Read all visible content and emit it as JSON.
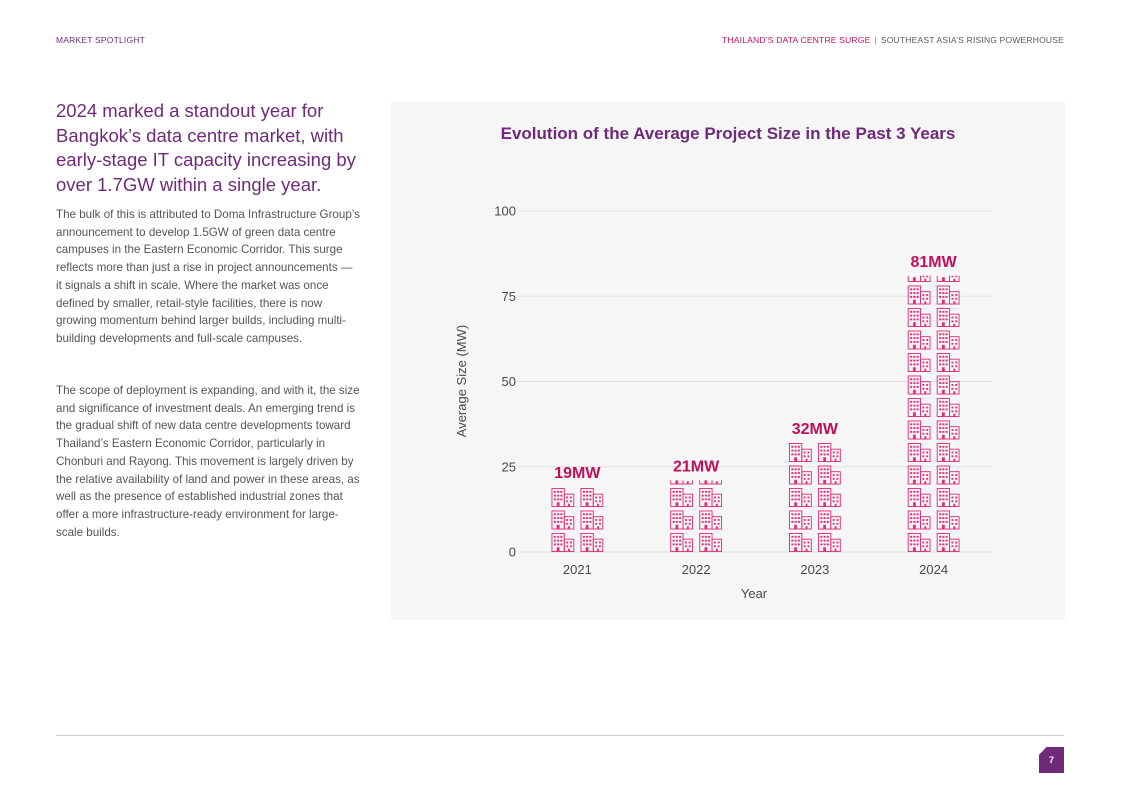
{
  "header": {
    "section": "MARKET SPOTLIGHT",
    "report_title": "THAILAND’S DATA CENTRE SURGE",
    "separator": "|",
    "report_subtitle": "SOUTHEAST ASIA’S RISING POWERHOUSE"
  },
  "article": {
    "headline": "2024 marked a standout year for Bangkok’s data centre market, with early-stage IT capacity increasing by over 1.7GW within a single year.",
    "paragraph1": "The bulk of this is attributed to Doma Infrastructure Group’s announcement to develop 1.5GW of green data centre campuses in the Eastern Economic Corridor. This surge reflects more than just a rise in project announcements — it signals a shift in scale. Where the market was once defined by smaller, retail-style facilities, there is now growing momentum behind larger builds, including multi-building developments and full-scale campuses.",
    "paragraph2": "The scope of deployment is expanding, and with it, the size and significance of investment deals. An emerging trend is the gradual shift of new data centre developments toward Thailand’s Eastern Economic Corridor, particularly in Chonburi and Rayong. This movement is largely driven by the relative availability of land and power in these areas, as well as the presence of established industrial zones that offer a more infrastructure-ready environment for large-scale builds."
  },
  "chart_data": {
    "type": "bar",
    "title": "Evolution of the Average Project Size in the Past 3 Years",
    "xlabel": "Year",
    "ylabel": "Average Size (MW)",
    "categories": [
      "2021",
      "2022",
      "2023",
      "2024"
    ],
    "values": [
      19,
      21,
      32,
      81
    ],
    "data_labels": [
      "19MW",
      "21MW",
      "32MW",
      "81MW"
    ],
    "ylim": [
      0,
      100
    ],
    "yticks": [
      0,
      25,
      50,
      75,
      100
    ],
    "grid": true,
    "mark_style": "pictograph-building-icons",
    "colors": {
      "bar": "#e0307a",
      "label": "#c0105a",
      "title": "#6f2a7a",
      "grid": "#e2e2e2",
      "panel": "#f6f6f6"
    }
  },
  "footer": {
    "page_number": "7"
  }
}
